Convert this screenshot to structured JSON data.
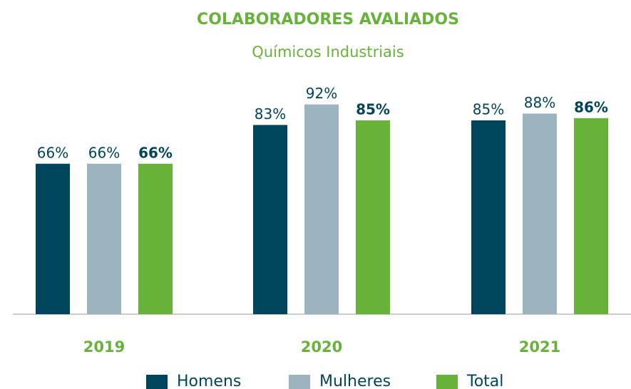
{
  "chart_data": {
    "type": "bar",
    "title": "COLABORADORES AVALIADOS",
    "subtitle": "Químicos Industriais",
    "categories": [
      "2019",
      "2020",
      "2021"
    ],
    "series": [
      {
        "name": "Homens",
        "color": "#00455e",
        "values": [
          66,
          83,
          85
        ],
        "value_labels": [
          "66%",
          "83%",
          "85%"
        ],
        "label_bold": false
      },
      {
        "name": "Mulheres",
        "color": "#9bb4be",
        "values": [
          66,
          92,
          88
        ],
        "value_labels": [
          "66%",
          "92%",
          "88%"
        ],
        "label_bold": false
      },
      {
        "name": "Total",
        "color": "#67b339",
        "values": [
          66,
          85,
          86
        ],
        "value_labels": [
          "66%",
          "85%",
          "86%"
        ],
        "label_bold": true
      }
    ],
    "grid": false,
    "legend": "bottom"
  }
}
